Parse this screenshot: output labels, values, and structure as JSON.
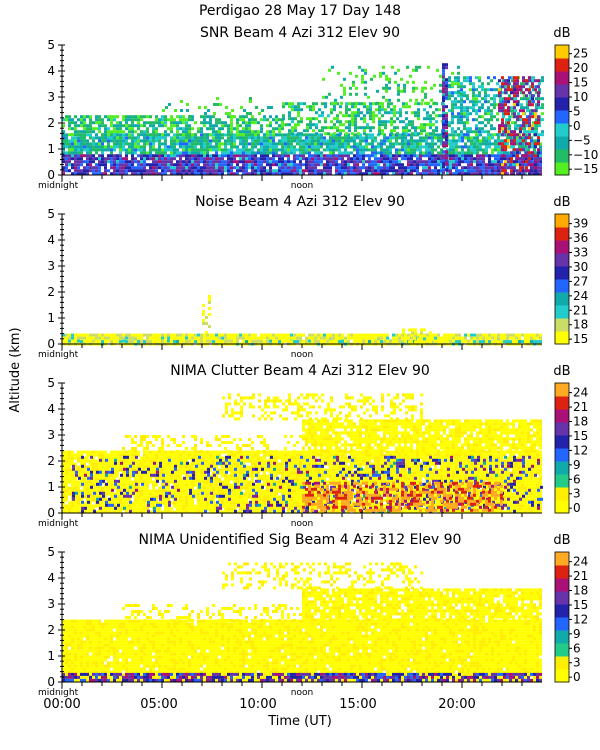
{
  "figure": {
    "title": "Perdigao  28 May 17 Day 148",
    "shared_ylabel": "Altitude (km)",
    "xlabel": "Time (UT)",
    "time_ticks": [
      "00:00",
      "05:00",
      "10:00",
      "15:00",
      "20:00"
    ],
    "x_marks": {
      "start": "midnight",
      "middle": "noon"
    },
    "colorbar_unit": "dB"
  },
  "chart_data": [
    {
      "type": "heatmap",
      "title": "SNR Beam 4 Azi 312 Elev 90",
      "ylabel": "Altitude (km)",
      "xlabel": "Time (UT)",
      "xlim": [
        0,
        24
      ],
      "ylim": [
        0,
        5
      ],
      "yticks": [
        "0",
        "1",
        "2",
        "3",
        "4",
        "5"
      ],
      "colorbar": {
        "unit": "dB",
        "ticks": [
          "25",
          "20",
          "15",
          "10",
          "5",
          "0",
          "−5",
          "−10",
          "−15"
        ],
        "range": [
          -17,
          28
        ]
      },
      "colors": [
        "#55ee22",
        "#22bb66",
        "#11aaaa",
        "#22cccc",
        "#2266ff",
        "#2222aa",
        "#6633aa",
        "#aa1177",
        "#dd2211",
        "#ffcc00"
      ],
      "regions": [
        {
          "t": [
            0,
            24
          ],
          "h": [
            0.05,
            0.8
          ],
          "level": 0.55,
          "density": 0.9
        },
        {
          "t": [
            0,
            24
          ],
          "h": [
            0.8,
            1.6
          ],
          "level": 0.25,
          "density": 0.85
        },
        {
          "t": [
            0,
            11
          ],
          "h": [
            1.6,
            2.3
          ],
          "level": 0.15,
          "density": 0.7
        },
        {
          "t": [
            11,
            19
          ],
          "h": [
            1.6,
            2.8
          ],
          "level": 0.15,
          "density": 0.55
        },
        {
          "t": [
            19,
            24
          ],
          "h": [
            1.6,
            3.8
          ],
          "level": 0.25,
          "density": 0.55
        },
        {
          "t": [
            5,
            11
          ],
          "h": [
            2.3,
            3.0
          ],
          "level": 0.1,
          "density": 0.15
        },
        {
          "t": [
            13,
            20
          ],
          "h": [
            2.8,
            4.2
          ],
          "level": 0.1,
          "density": 0.2
        },
        {
          "t": [
            21.8,
            23.8
          ],
          "h": [
            0.05,
            3.8
          ],
          "level": 0.75,
          "density": 0.45
        },
        {
          "t": [
            19,
            19.3
          ],
          "h": [
            0.05,
            4.3
          ],
          "level": 0.6,
          "density": 0.8
        }
      ]
    },
    {
      "type": "heatmap",
      "title": "Noise Beam 4 Azi 312 Elev 90",
      "ylabel": "Altitude (km)",
      "xlabel": "Time (UT)",
      "xlim": [
        0,
        24
      ],
      "ylim": [
        0,
        5
      ],
      "yticks": [
        "0",
        "1",
        "2",
        "3",
        "4",
        "5"
      ],
      "colorbar": {
        "unit": "dB",
        "ticks": [
          "39",
          "36",
          "33",
          "30",
          "27",
          "24",
          "21",
          "18",
          "15"
        ],
        "range": [
          14,
          41
        ]
      },
      "colors": [
        "#ffff00",
        "#ccdd66",
        "#22cccc",
        "#11aaaa",
        "#2266ff",
        "#2222aa",
        "#6633aa",
        "#aa1177",
        "#dd2211",
        "#ffaa00"
      ],
      "regions": [
        {
          "t": [
            0,
            24
          ],
          "h": [
            0.05,
            0.4
          ],
          "level": 0.05,
          "density": 0.95
        },
        {
          "t": [
            0,
            24
          ],
          "h": [
            0.05,
            0.15
          ],
          "level": 0.15,
          "density": 0.6
        },
        {
          "t": [
            7,
            7.4
          ],
          "h": [
            0.4,
            2.0
          ],
          "level": 0.05,
          "density": 0.35
        },
        {
          "t": [
            17,
            18.5
          ],
          "h": [
            0.05,
            0.6
          ],
          "level": 0.05,
          "density": 0.5
        }
      ]
    },
    {
      "type": "heatmap",
      "title": "NIMA Clutter Beam 4 Azi 312 Elev 90",
      "ylabel": "Altitude (km)",
      "xlabel": "Time (UT)",
      "xlim": [
        0,
        24
      ],
      "ylim": [
        0,
        5
      ],
      "yticks": [
        "0",
        "1",
        "2",
        "3",
        "4",
        "5"
      ],
      "colorbar": {
        "unit": "dB",
        "ticks": [
          "24",
          "21",
          "18",
          "15",
          "12",
          "9",
          "6",
          "3",
          "0"
        ],
        "range": [
          -1,
          26
        ]
      },
      "colors": [
        "#ffff00",
        "#ffee00",
        "#22cc88",
        "#11aaaa",
        "#2266ff",
        "#2222aa",
        "#6633aa",
        "#aa1177",
        "#dd2211",
        "#ffaa22"
      ],
      "regions": [
        {
          "t": [
            0,
            24
          ],
          "h": [
            0.05,
            2.4
          ],
          "level": 0.02,
          "density": 0.95
        },
        {
          "t": [
            12,
            24
          ],
          "h": [
            2.4,
            3.6
          ],
          "level": 0.02,
          "density": 0.85
        },
        {
          "t": [
            3,
            12
          ],
          "h": [
            2.4,
            3.0
          ],
          "level": 0.02,
          "density": 0.3
        },
        {
          "t": [
            8,
            18
          ],
          "h": [
            3.6,
            4.6
          ],
          "level": 0.02,
          "density": 0.35
        },
        {
          "t": [
            0.5,
            24
          ],
          "h": [
            0.05,
            2.2
          ],
          "level": 0.55,
          "density": 0.22
        },
        {
          "t": [
            12,
            22
          ],
          "h": [
            0.05,
            1.2
          ],
          "level": 0.95,
          "density": 0.55
        }
      ]
    },
    {
      "type": "heatmap",
      "title": "NIMA Unidentified Sig Beam 4 Azi 312 Elev 90",
      "ylabel": "Altitude (km)",
      "xlabel": "Time (UT)",
      "xlim": [
        0,
        24
      ],
      "ylim": [
        0,
        5
      ],
      "yticks": [
        "0",
        "1",
        "2",
        "3",
        "4",
        "5"
      ],
      "colorbar": {
        "unit": "dB",
        "ticks": [
          "24",
          "21",
          "18",
          "15",
          "12",
          "9",
          "6",
          "3",
          "0"
        ],
        "range": [
          -1,
          26
        ]
      },
      "colors": [
        "#ffff00",
        "#ffee00",
        "#22cc88",
        "#11aaaa",
        "#2266ff",
        "#2222aa",
        "#6633aa",
        "#aa1177",
        "#dd2211",
        "#ffaa22"
      ],
      "regions": [
        {
          "t": [
            0,
            24
          ],
          "h": [
            0.05,
            2.4
          ],
          "level": 0.02,
          "density": 0.97
        },
        {
          "t": [
            12,
            24
          ],
          "h": [
            2.4,
            3.6
          ],
          "level": 0.02,
          "density": 0.85
        },
        {
          "t": [
            3,
            12
          ],
          "h": [
            2.4,
            3.0
          ],
          "level": 0.02,
          "density": 0.3
        },
        {
          "t": [
            8,
            18
          ],
          "h": [
            3.6,
            4.6
          ],
          "level": 0.02,
          "density": 0.35
        },
        {
          "t": [
            0,
            24
          ],
          "h": [
            0.1,
            0.35
          ],
          "level": 0.6,
          "density": 0.75
        }
      ]
    }
  ]
}
